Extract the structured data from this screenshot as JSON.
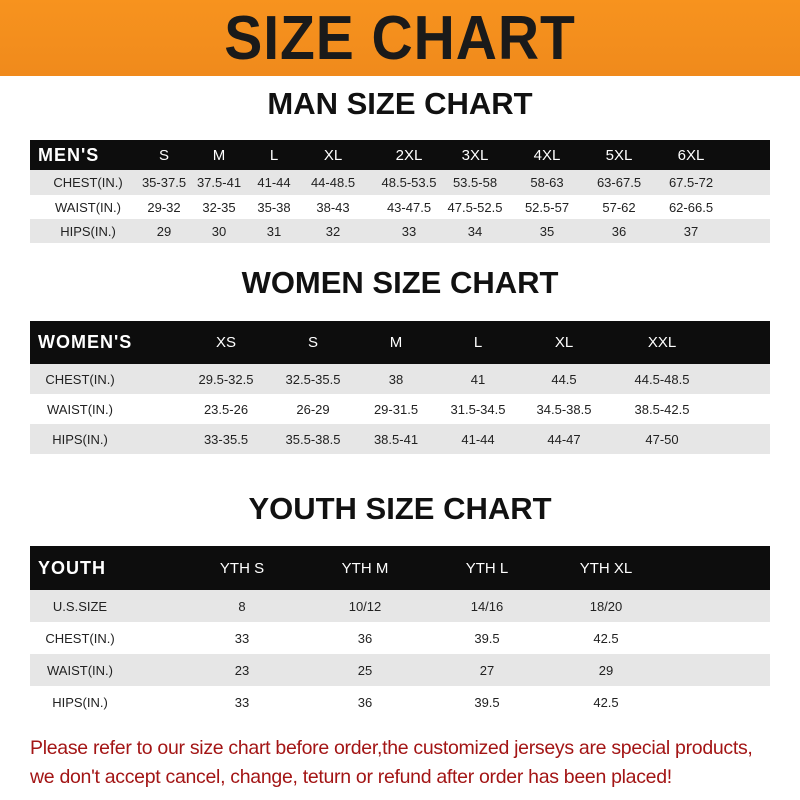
{
  "banner": {
    "title": "SIZE CHART",
    "color": "#f7931e"
  },
  "men": {
    "title": "MAN SIZE CHART",
    "header": [
      "MEN'S",
      "S",
      "M",
      "L",
      "XL",
      "2XL",
      "3XL",
      "4XL",
      "5XL",
      "6XL"
    ],
    "rows": [
      [
        "CHEST(IN.)",
        "35-37.5",
        "37.5-41",
        "41-44",
        "44-48.5",
        "48.5-53.5",
        "53.5-58",
        "58-63",
        "63-67.5",
        "67.5-72"
      ],
      [
        "WAIST(IN.)",
        "29-32",
        "32-35",
        "35-38",
        "38-43",
        "43-47.5",
        "47.5-52.5",
        "52.5-57",
        "57-62",
        "62-66.5"
      ],
      [
        "HIPS(IN.)",
        "29",
        "30",
        "31",
        "32",
        "33",
        "34",
        "35",
        "36",
        "37"
      ]
    ]
  },
  "women": {
    "title": "WOMEN SIZE CHART",
    "header": [
      "WOMEN'S",
      "XS",
      "S",
      "M",
      "L",
      "XL",
      "XXL"
    ],
    "rows": [
      [
        "CHEST(IN.)",
        "29.5-32.5",
        "32.5-35.5",
        "38",
        "41",
        "44.5",
        "44.5-48.5"
      ],
      [
        "WAIST(IN.)",
        "23.5-26",
        "26-29",
        "29-31.5",
        "31.5-34.5",
        "34.5-38.5",
        "38.5-42.5"
      ],
      [
        "HIPS(IN.)",
        "33-35.5",
        "35.5-38.5",
        "38.5-41",
        "41-44",
        "44-47",
        "47-50"
      ]
    ]
  },
  "youth": {
    "title": "YOUTH SIZE CHART",
    "header": [
      "YOUTH",
      "YTH S",
      "YTH M",
      "YTH L",
      "YTH XL"
    ],
    "rows": [
      [
        "U.S.SIZE",
        "8",
        "10/12",
        "14/16",
        "18/20"
      ],
      [
        "CHEST(IN.)",
        "33",
        "36",
        "39.5",
        "42.5"
      ],
      [
        "WAIST(IN.)",
        "23",
        "25",
        "27",
        "29"
      ],
      [
        "HIPS(IN.)",
        "33",
        "36",
        "39.5",
        "42.5"
      ]
    ]
  },
  "note": {
    "line1": "Please refer to our size chart before order,the customized jerseys are special products,",
    "line2": "we don't accept cancel, change, teturn or refund after order has been placed!",
    "color": "#a31515"
  }
}
